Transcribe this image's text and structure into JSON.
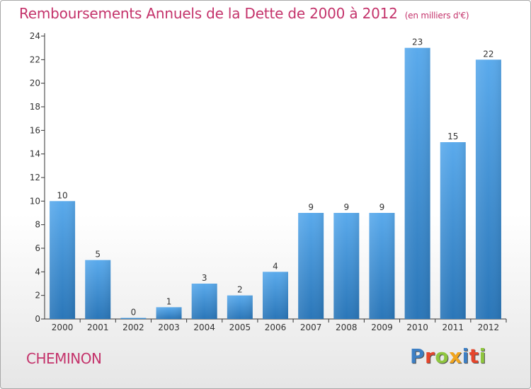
{
  "chart_data": {
    "type": "bar",
    "title": "Remboursements Annuels de la Dette de 2000 à 2012",
    "subtitle": "(en milliers d'€)",
    "categories": [
      "2000",
      "2001",
      "2002",
      "2003",
      "2004",
      "2005",
      "2006",
      "2007",
      "2008",
      "2009",
      "2010",
      "2011",
      "2012"
    ],
    "values": [
      10,
      5,
      0,
      1,
      3,
      2,
      4,
      9,
      9,
      9,
      23,
      15,
      22
    ],
    "data_labels": [
      "10",
      "5",
      "0",
      "1",
      "3",
      "2",
      "4",
      "9",
      "9",
      "9",
      "23",
      "15",
      "22"
    ],
    "ylim": [
      0,
      24
    ],
    "yticks": [
      0,
      2,
      4,
      6,
      8,
      10,
      12,
      14,
      16,
      18,
      20,
      22,
      24
    ],
    "xlabel": "",
    "ylabel": "",
    "grid": false,
    "legend": "none",
    "colors": {
      "bar_top": "#5aaaec",
      "bar_bottom": "#2a76b8",
      "title": "#c4336b",
      "axis": "#333333"
    }
  },
  "footer": {
    "town": "CHEMINON",
    "brand_letters": [
      {
        "ch": "P",
        "color": "#3d7fc4"
      },
      {
        "ch": "r",
        "color": "#e6452b"
      },
      {
        "ch": "o",
        "color": "#8fc63f"
      },
      {
        "ch": "x",
        "color": "#f2a51d"
      },
      {
        "ch": "i",
        "color": "#3d7fc4"
      },
      {
        "ch": "t",
        "color": "#e6452b"
      },
      {
        "ch": "i",
        "color": "#8fc63f"
      }
    ]
  }
}
